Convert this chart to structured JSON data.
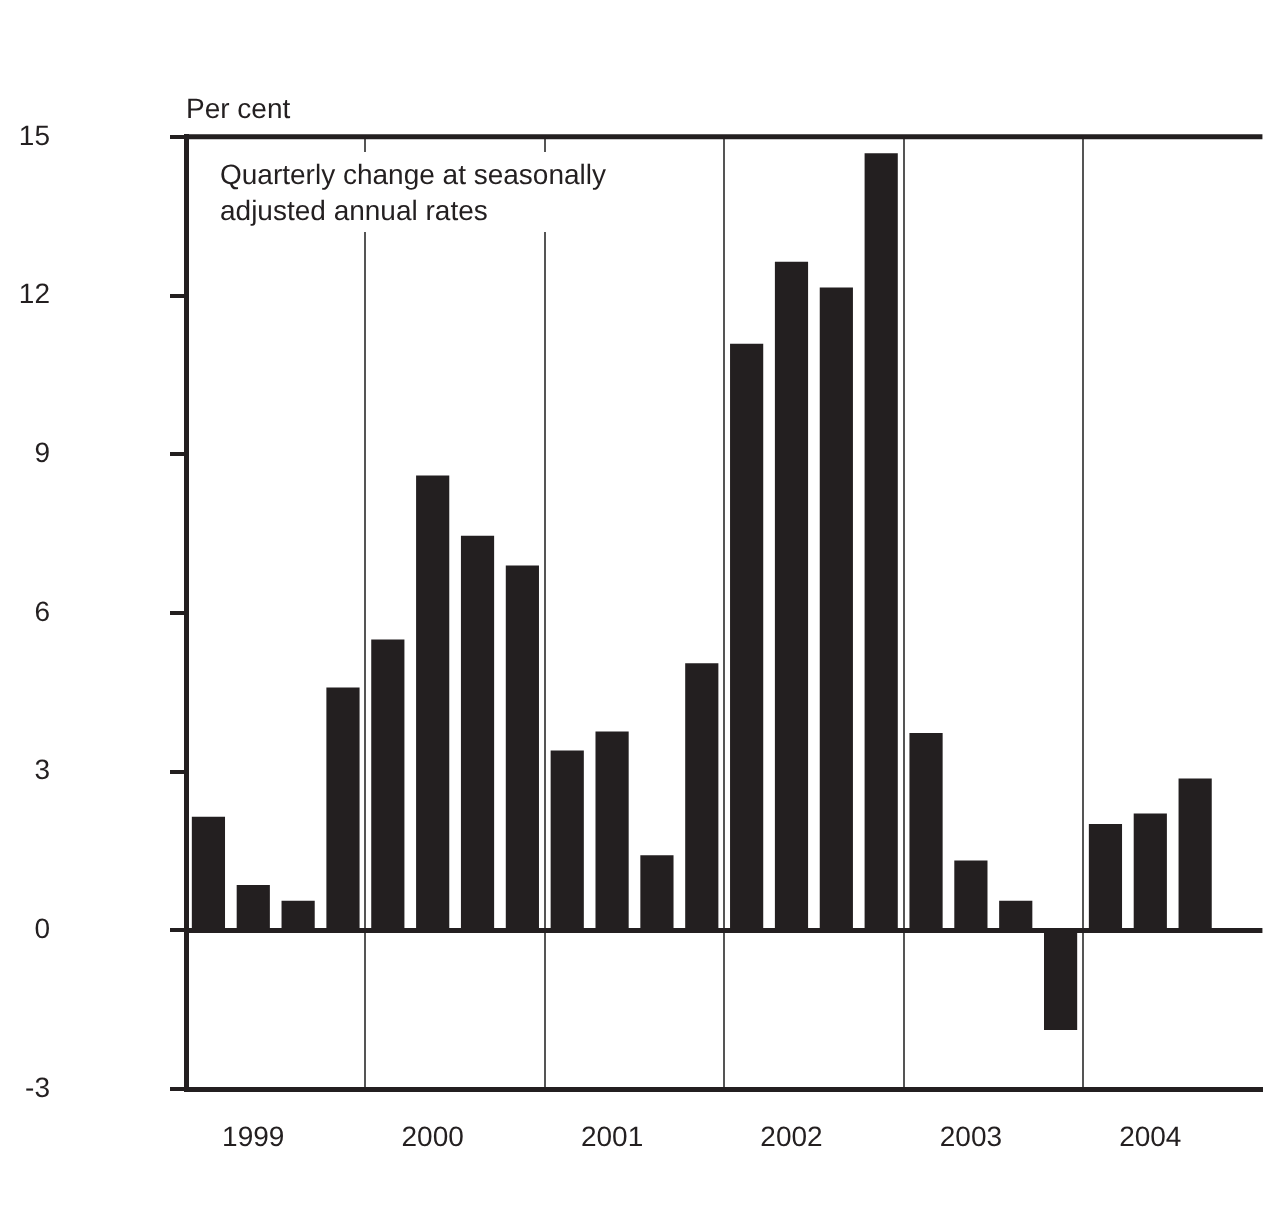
{
  "chart_data": {
    "type": "bar",
    "ylabel": "Per cent",
    "annotations": [
      "Quarterly change at seasonally adjusted annual rates"
    ],
    "categories": [
      null,
      "1999",
      null,
      null,
      null,
      "2000",
      null,
      null,
      null,
      "2001",
      null,
      null,
      null,
      "2002",
      null,
      null,
      null,
      "2003",
      null,
      null,
      null,
      "2004",
      null,
      null
    ],
    "values": [
      2.15,
      0.86,
      0.56,
      4.59,
      5.5,
      8.6,
      7.46,
      6.9,
      3.4,
      3.76,
      1.42,
      5.05,
      11.09,
      12.64,
      12.15,
      14.69,
      3.73,
      1.32,
      0.56,
      -1.88,
      2.01,
      2.21,
      2.87,
      null
    ],
    "color": "#231f20",
    "ylim": [
      -3,
      15
    ],
    "yticks": [
      -3,
      0,
      3,
      6,
      9,
      12,
      15
    ],
    "grid": "x"
  }
}
